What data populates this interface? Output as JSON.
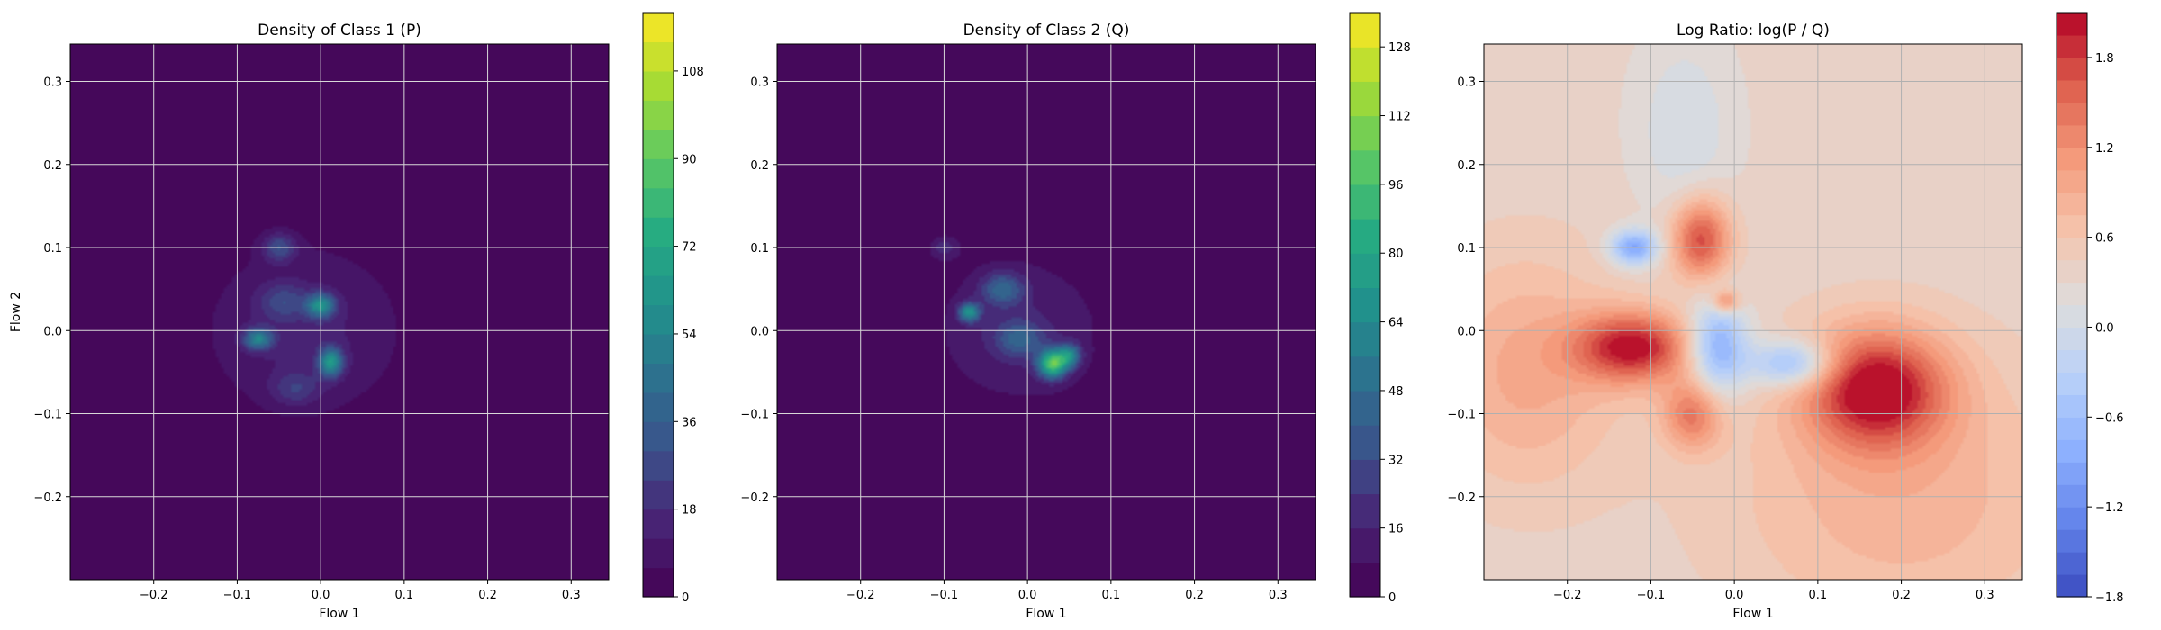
{
  "chart_data": [
    {
      "type": "heatmap",
      "title": "Density of Class 1 (P)",
      "xlabel": "Flow 1",
      "ylabel": "Flow 2",
      "xlim": [
        -0.3,
        0.345
      ],
      "ylim": [
        -0.3,
        0.345
      ],
      "x_ticks": [
        -0.2,
        -0.1,
        0.0,
        0.1,
        0.2,
        0.3
      ],
      "y_ticks": [
        -0.2,
        -0.1,
        0.0,
        0.1,
        0.2,
        0.3
      ],
      "x_tick_labels": [
        "−0.2",
        "−0.1",
        "0.0",
        "0.1",
        "0.2",
        "0.3"
      ],
      "y_tick_labels": [
        "−0.2",
        "−0.1",
        "0.0",
        "0.1",
        "0.2",
        "0.3"
      ],
      "grid": true,
      "colormap": "viridis",
      "colorbar": {
        "min": 0,
        "max": 120,
        "ticks": [
          0,
          18,
          36,
          54,
          72,
          90,
          108
        ],
        "tick_labels": [
          "0",
          "18",
          "36",
          "54",
          "72",
          "90",
          "108"
        ],
        "levels": 20
      },
      "blobs": [
        {
          "x": -0.02,
          "y": 0.0,
          "sx": 0.085,
          "sy": 0.075,
          "amp": 14
        },
        {
          "x": 0.0,
          "y": 0.03,
          "sx": 0.012,
          "sy": 0.01,
          "amp": 50
        },
        {
          "x": 0.012,
          "y": -0.038,
          "sx": 0.01,
          "sy": 0.012,
          "amp": 55
        },
        {
          "x": -0.075,
          "y": -0.01,
          "sx": 0.012,
          "sy": 0.009,
          "amp": 45
        },
        {
          "x": -0.05,
          "y": 0.1,
          "sx": 0.014,
          "sy": 0.012,
          "amp": 25
        },
        {
          "x": -0.045,
          "y": 0.035,
          "sx": 0.02,
          "sy": 0.015,
          "amp": 18
        },
        {
          "x": -0.03,
          "y": -0.07,
          "sx": 0.02,
          "sy": 0.014,
          "amp": 16
        }
      ]
    },
    {
      "type": "heatmap",
      "title": "Density of Class 2 (Q)",
      "xlabel": "Flow 1",
      "ylabel": "",
      "xlim": [
        -0.3,
        0.345
      ],
      "ylim": [
        -0.3,
        0.345
      ],
      "x_ticks": [
        -0.2,
        -0.1,
        0.0,
        0.1,
        0.2,
        0.3
      ],
      "y_ticks": [
        -0.2,
        -0.1,
        0.0,
        0.1,
        0.2,
        0.3
      ],
      "x_tick_labels": [
        "−0.2",
        "−0.1",
        "0.0",
        "0.1",
        "0.2",
        "0.3"
      ],
      "y_tick_labels": [
        "−0.2",
        "−0.1",
        "0.0",
        "0.1",
        "0.2",
        "0.3"
      ],
      "grid": true,
      "colormap": "viridis",
      "colorbar": {
        "min": 0,
        "max": 136,
        "ticks": [
          0,
          16,
          32,
          48,
          64,
          80,
          96,
          112,
          128
        ],
        "tick_labels": [
          "0",
          "16",
          "32",
          "48",
          "64",
          "80",
          "96",
          "112",
          "128"
        ],
        "levels": 17
      },
      "blobs": [
        {
          "x": -0.01,
          "y": 0.0,
          "sx": 0.075,
          "sy": 0.065,
          "amp": 16
        },
        {
          "x": -0.07,
          "y": 0.022,
          "sx": 0.009,
          "sy": 0.008,
          "amp": 60
        },
        {
          "x": 0.03,
          "y": -0.04,
          "sx": 0.012,
          "sy": 0.012,
          "amp": 90
        },
        {
          "x": 0.05,
          "y": -0.03,
          "sx": 0.01,
          "sy": 0.01,
          "amp": 50
        },
        {
          "x": -0.03,
          "y": 0.05,
          "sx": 0.018,
          "sy": 0.014,
          "amp": 35
        },
        {
          "x": -0.01,
          "y": -0.01,
          "sx": 0.02,
          "sy": 0.015,
          "amp": 30
        },
        {
          "x": -0.1,
          "y": 0.1,
          "sx": 0.012,
          "sy": 0.01,
          "amp": 18
        }
      ]
    },
    {
      "type": "heatmap",
      "title": "Log Ratio: log(P / Q)",
      "xlabel": "Flow 1",
      "ylabel": "",
      "xlim": [
        -0.3,
        0.345
      ],
      "ylim": [
        -0.3,
        0.345
      ],
      "x_ticks": [
        -0.2,
        -0.1,
        0.0,
        0.1,
        0.2,
        0.3
      ],
      "y_ticks": [
        -0.2,
        -0.1,
        0.0,
        0.1,
        0.2,
        0.3
      ],
      "x_tick_labels": [
        "−0.2",
        "−0.1",
        "0.0",
        "0.1",
        "0.2",
        "0.3"
      ],
      "y_tick_labels": [
        "−0.2",
        "−0.1",
        "0.0",
        "0.1",
        "0.2",
        "0.3"
      ],
      "grid": true,
      "colormap": "coolwarm",
      "colorbar": {
        "min": -1.8,
        "max": 2.1,
        "ticks": [
          -1.8,
          -1.2,
          -0.6,
          0.0,
          0.6,
          1.2,
          1.8
        ],
        "tick_labels": [
          "−1.8",
          "−1.2",
          "−0.6",
          "0.0",
          "0.6",
          "1.2",
          "1.8"
        ],
        "levels": 26
      },
      "blobs": [
        {
          "x": -0.12,
          "y": -0.02,
          "sx": 0.05,
          "sy": 0.03,
          "amp": 1.6
        },
        {
          "x": 0.17,
          "y": -0.07,
          "sx": 0.06,
          "sy": 0.05,
          "amp": 1.7
        },
        {
          "x": -0.04,
          "y": 0.11,
          "sx": 0.025,
          "sy": 0.035,
          "amp": 1.4
        },
        {
          "x": -0.05,
          "y": -0.1,
          "sx": 0.025,
          "sy": 0.03,
          "amp": 1.0
        },
        {
          "x": -0.12,
          "y": 0.1,
          "sx": 0.02,
          "sy": 0.015,
          "amp": -1.3
        },
        {
          "x": -0.02,
          "y": -0.02,
          "sx": 0.025,
          "sy": 0.04,
          "amp": -1.3
        },
        {
          "x": 0.07,
          "y": -0.04,
          "sx": 0.035,
          "sy": 0.02,
          "amp": -1.2
        },
        {
          "x": -0.06,
          "y": 0.24,
          "sx": 0.04,
          "sy": 0.08,
          "amp": -0.35
        },
        {
          "x": 0.2,
          "y": -0.2,
          "sx": 0.15,
          "sy": 0.12,
          "amp": 0.5
        },
        {
          "x": -0.25,
          "y": -0.05,
          "sx": 0.08,
          "sy": 0.1,
          "amp": 0.6
        },
        {
          "x": -0.01,
          "y": 0.035,
          "sx": 0.012,
          "sy": 0.01,
          "amp": 1.0
        }
      ],
      "baseline": 0.35
    }
  ]
}
